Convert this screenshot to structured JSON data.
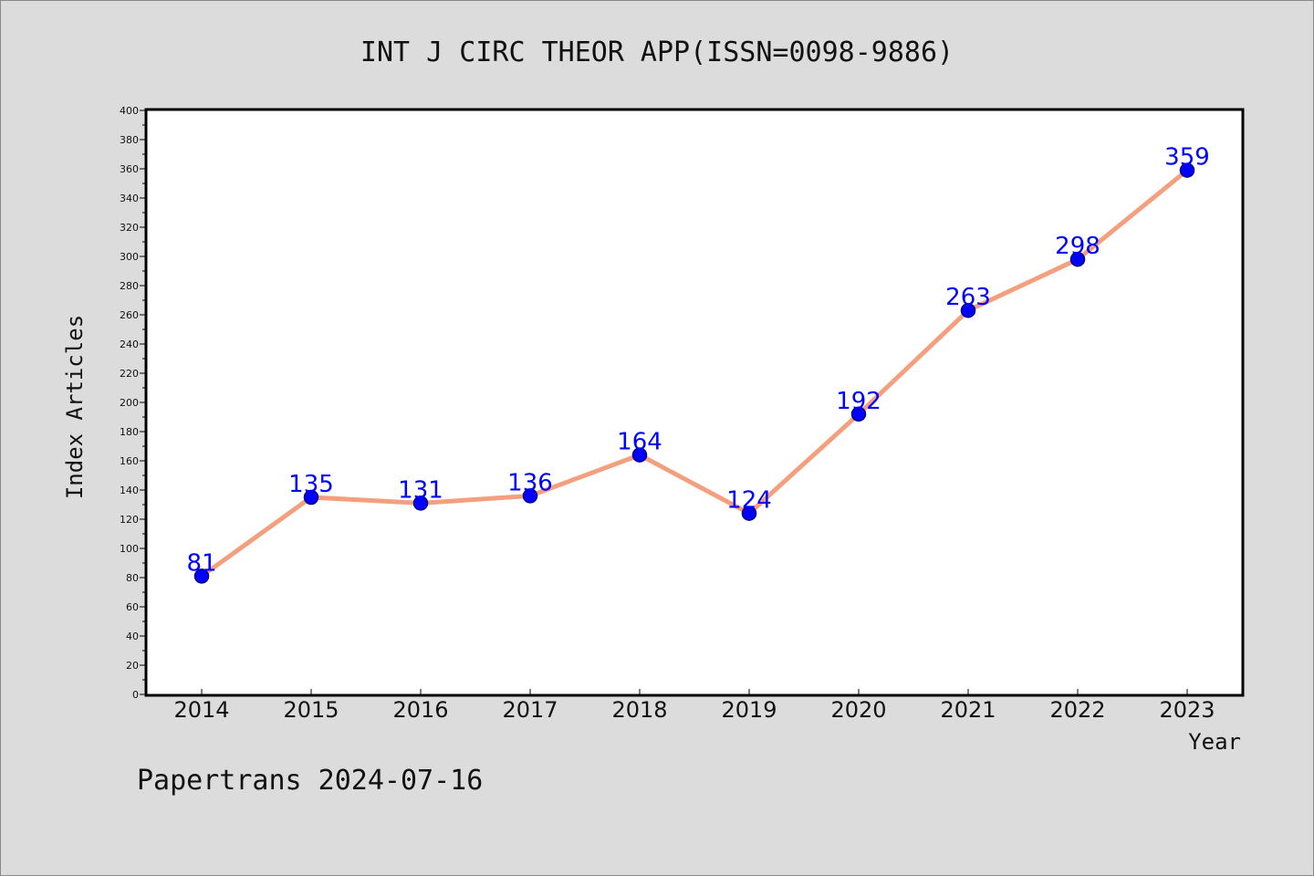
{
  "chart_data": {
    "type": "line",
    "title": "INT J CIRC THEOR APP(ISSN=0098-9886)",
    "xlabel": "Year",
    "ylabel": "Index Articles",
    "categories": [
      "2014",
      "2015",
      "2016",
      "2017",
      "2018",
      "2019",
      "2020",
      "2021",
      "2022",
      "2023"
    ],
    "values": [
      81,
      135,
      131,
      136,
      164,
      124,
      192,
      263,
      298,
      359
    ],
    "ylim": [
      0,
      400
    ],
    "yticks": [
      0,
      20,
      40,
      60,
      80,
      100,
      120,
      140,
      160,
      180,
      200,
      220,
      240,
      260,
      280,
      300,
      320,
      340,
      360,
      380,
      400
    ],
    "data_labels": true,
    "grid": false,
    "colors": {
      "line": "#f4a07f",
      "marker": "#0000ff",
      "marker_edge": "#000080",
      "data_label": "#0000ff",
      "plot_background": "#ffffff",
      "page_background": "#dcdcdc"
    }
  },
  "footer": {
    "watermark": "Papertrans 2024-07-16"
  }
}
